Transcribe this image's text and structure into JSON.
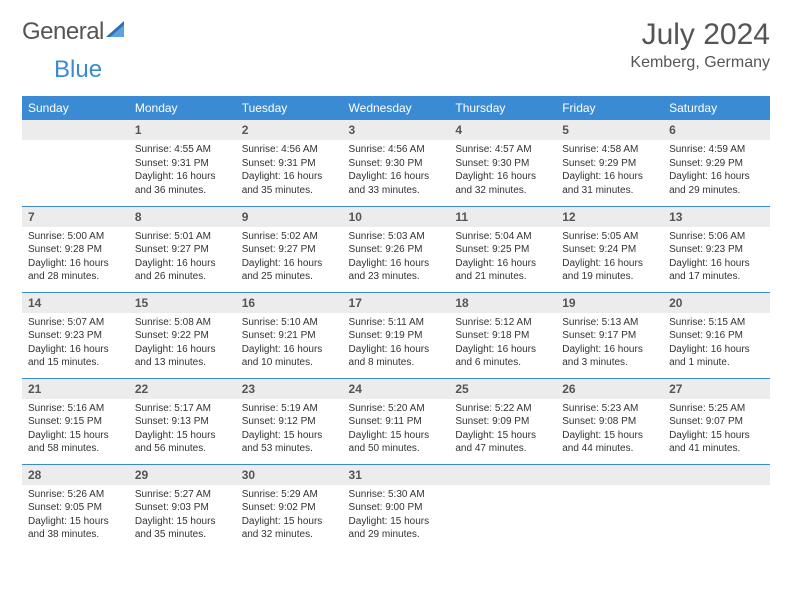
{
  "brand": {
    "name_part1": "General",
    "name_part2": "Blue"
  },
  "header": {
    "month": "July 2024",
    "location": "Kemberg, Germany"
  },
  "colors": {
    "accent": "#3b8bd4",
    "header_text": "#555555",
    "daynum_bg": "#ececec",
    "body_text": "#333333",
    "bg": "#ffffff"
  },
  "calendar": {
    "day_labels": [
      "Sunday",
      "Monday",
      "Tuesday",
      "Wednesday",
      "Thursday",
      "Friday",
      "Saturday"
    ],
    "weeks": [
      [
        null,
        {
          "n": "1",
          "sunrise": "Sunrise: 4:55 AM",
          "sunset": "Sunset: 9:31 PM",
          "daylight": "Daylight: 16 hours and 36 minutes."
        },
        {
          "n": "2",
          "sunrise": "Sunrise: 4:56 AM",
          "sunset": "Sunset: 9:31 PM",
          "daylight": "Daylight: 16 hours and 35 minutes."
        },
        {
          "n": "3",
          "sunrise": "Sunrise: 4:56 AM",
          "sunset": "Sunset: 9:30 PM",
          "daylight": "Daylight: 16 hours and 33 minutes."
        },
        {
          "n": "4",
          "sunrise": "Sunrise: 4:57 AM",
          "sunset": "Sunset: 9:30 PM",
          "daylight": "Daylight: 16 hours and 32 minutes."
        },
        {
          "n": "5",
          "sunrise": "Sunrise: 4:58 AM",
          "sunset": "Sunset: 9:29 PM",
          "daylight": "Daylight: 16 hours and 31 minutes."
        },
        {
          "n": "6",
          "sunrise": "Sunrise: 4:59 AM",
          "sunset": "Sunset: 9:29 PM",
          "daylight": "Daylight: 16 hours and 29 minutes."
        }
      ],
      [
        {
          "n": "7",
          "sunrise": "Sunrise: 5:00 AM",
          "sunset": "Sunset: 9:28 PM",
          "daylight": "Daylight: 16 hours and 28 minutes."
        },
        {
          "n": "8",
          "sunrise": "Sunrise: 5:01 AM",
          "sunset": "Sunset: 9:27 PM",
          "daylight": "Daylight: 16 hours and 26 minutes."
        },
        {
          "n": "9",
          "sunrise": "Sunrise: 5:02 AM",
          "sunset": "Sunset: 9:27 PM",
          "daylight": "Daylight: 16 hours and 25 minutes."
        },
        {
          "n": "10",
          "sunrise": "Sunrise: 5:03 AM",
          "sunset": "Sunset: 9:26 PM",
          "daylight": "Daylight: 16 hours and 23 minutes."
        },
        {
          "n": "11",
          "sunrise": "Sunrise: 5:04 AM",
          "sunset": "Sunset: 9:25 PM",
          "daylight": "Daylight: 16 hours and 21 minutes."
        },
        {
          "n": "12",
          "sunrise": "Sunrise: 5:05 AM",
          "sunset": "Sunset: 9:24 PM",
          "daylight": "Daylight: 16 hours and 19 minutes."
        },
        {
          "n": "13",
          "sunrise": "Sunrise: 5:06 AM",
          "sunset": "Sunset: 9:23 PM",
          "daylight": "Daylight: 16 hours and 17 minutes."
        }
      ],
      [
        {
          "n": "14",
          "sunrise": "Sunrise: 5:07 AM",
          "sunset": "Sunset: 9:23 PM",
          "daylight": "Daylight: 16 hours and 15 minutes."
        },
        {
          "n": "15",
          "sunrise": "Sunrise: 5:08 AM",
          "sunset": "Sunset: 9:22 PM",
          "daylight": "Daylight: 16 hours and 13 minutes."
        },
        {
          "n": "16",
          "sunrise": "Sunrise: 5:10 AM",
          "sunset": "Sunset: 9:21 PM",
          "daylight": "Daylight: 16 hours and 10 minutes."
        },
        {
          "n": "17",
          "sunrise": "Sunrise: 5:11 AM",
          "sunset": "Sunset: 9:19 PM",
          "daylight": "Daylight: 16 hours and 8 minutes."
        },
        {
          "n": "18",
          "sunrise": "Sunrise: 5:12 AM",
          "sunset": "Sunset: 9:18 PM",
          "daylight": "Daylight: 16 hours and 6 minutes."
        },
        {
          "n": "19",
          "sunrise": "Sunrise: 5:13 AM",
          "sunset": "Sunset: 9:17 PM",
          "daylight": "Daylight: 16 hours and 3 minutes."
        },
        {
          "n": "20",
          "sunrise": "Sunrise: 5:15 AM",
          "sunset": "Sunset: 9:16 PM",
          "daylight": "Daylight: 16 hours and 1 minute."
        }
      ],
      [
        {
          "n": "21",
          "sunrise": "Sunrise: 5:16 AM",
          "sunset": "Sunset: 9:15 PM",
          "daylight": "Daylight: 15 hours and 58 minutes."
        },
        {
          "n": "22",
          "sunrise": "Sunrise: 5:17 AM",
          "sunset": "Sunset: 9:13 PM",
          "daylight": "Daylight: 15 hours and 56 minutes."
        },
        {
          "n": "23",
          "sunrise": "Sunrise: 5:19 AM",
          "sunset": "Sunset: 9:12 PM",
          "daylight": "Daylight: 15 hours and 53 minutes."
        },
        {
          "n": "24",
          "sunrise": "Sunrise: 5:20 AM",
          "sunset": "Sunset: 9:11 PM",
          "daylight": "Daylight: 15 hours and 50 minutes."
        },
        {
          "n": "25",
          "sunrise": "Sunrise: 5:22 AM",
          "sunset": "Sunset: 9:09 PM",
          "daylight": "Daylight: 15 hours and 47 minutes."
        },
        {
          "n": "26",
          "sunrise": "Sunrise: 5:23 AM",
          "sunset": "Sunset: 9:08 PM",
          "daylight": "Daylight: 15 hours and 44 minutes."
        },
        {
          "n": "27",
          "sunrise": "Sunrise: 5:25 AM",
          "sunset": "Sunset: 9:07 PM",
          "daylight": "Daylight: 15 hours and 41 minutes."
        }
      ],
      [
        {
          "n": "28",
          "sunrise": "Sunrise: 5:26 AM",
          "sunset": "Sunset: 9:05 PM",
          "daylight": "Daylight: 15 hours and 38 minutes."
        },
        {
          "n": "29",
          "sunrise": "Sunrise: 5:27 AM",
          "sunset": "Sunset: 9:03 PM",
          "daylight": "Daylight: 15 hours and 35 minutes."
        },
        {
          "n": "30",
          "sunrise": "Sunrise: 5:29 AM",
          "sunset": "Sunset: 9:02 PM",
          "daylight": "Daylight: 15 hours and 32 minutes."
        },
        {
          "n": "31",
          "sunrise": "Sunrise: 5:30 AM",
          "sunset": "Sunset: 9:00 PM",
          "daylight": "Daylight: 15 hours and 29 minutes."
        },
        null,
        null,
        null
      ]
    ]
  }
}
